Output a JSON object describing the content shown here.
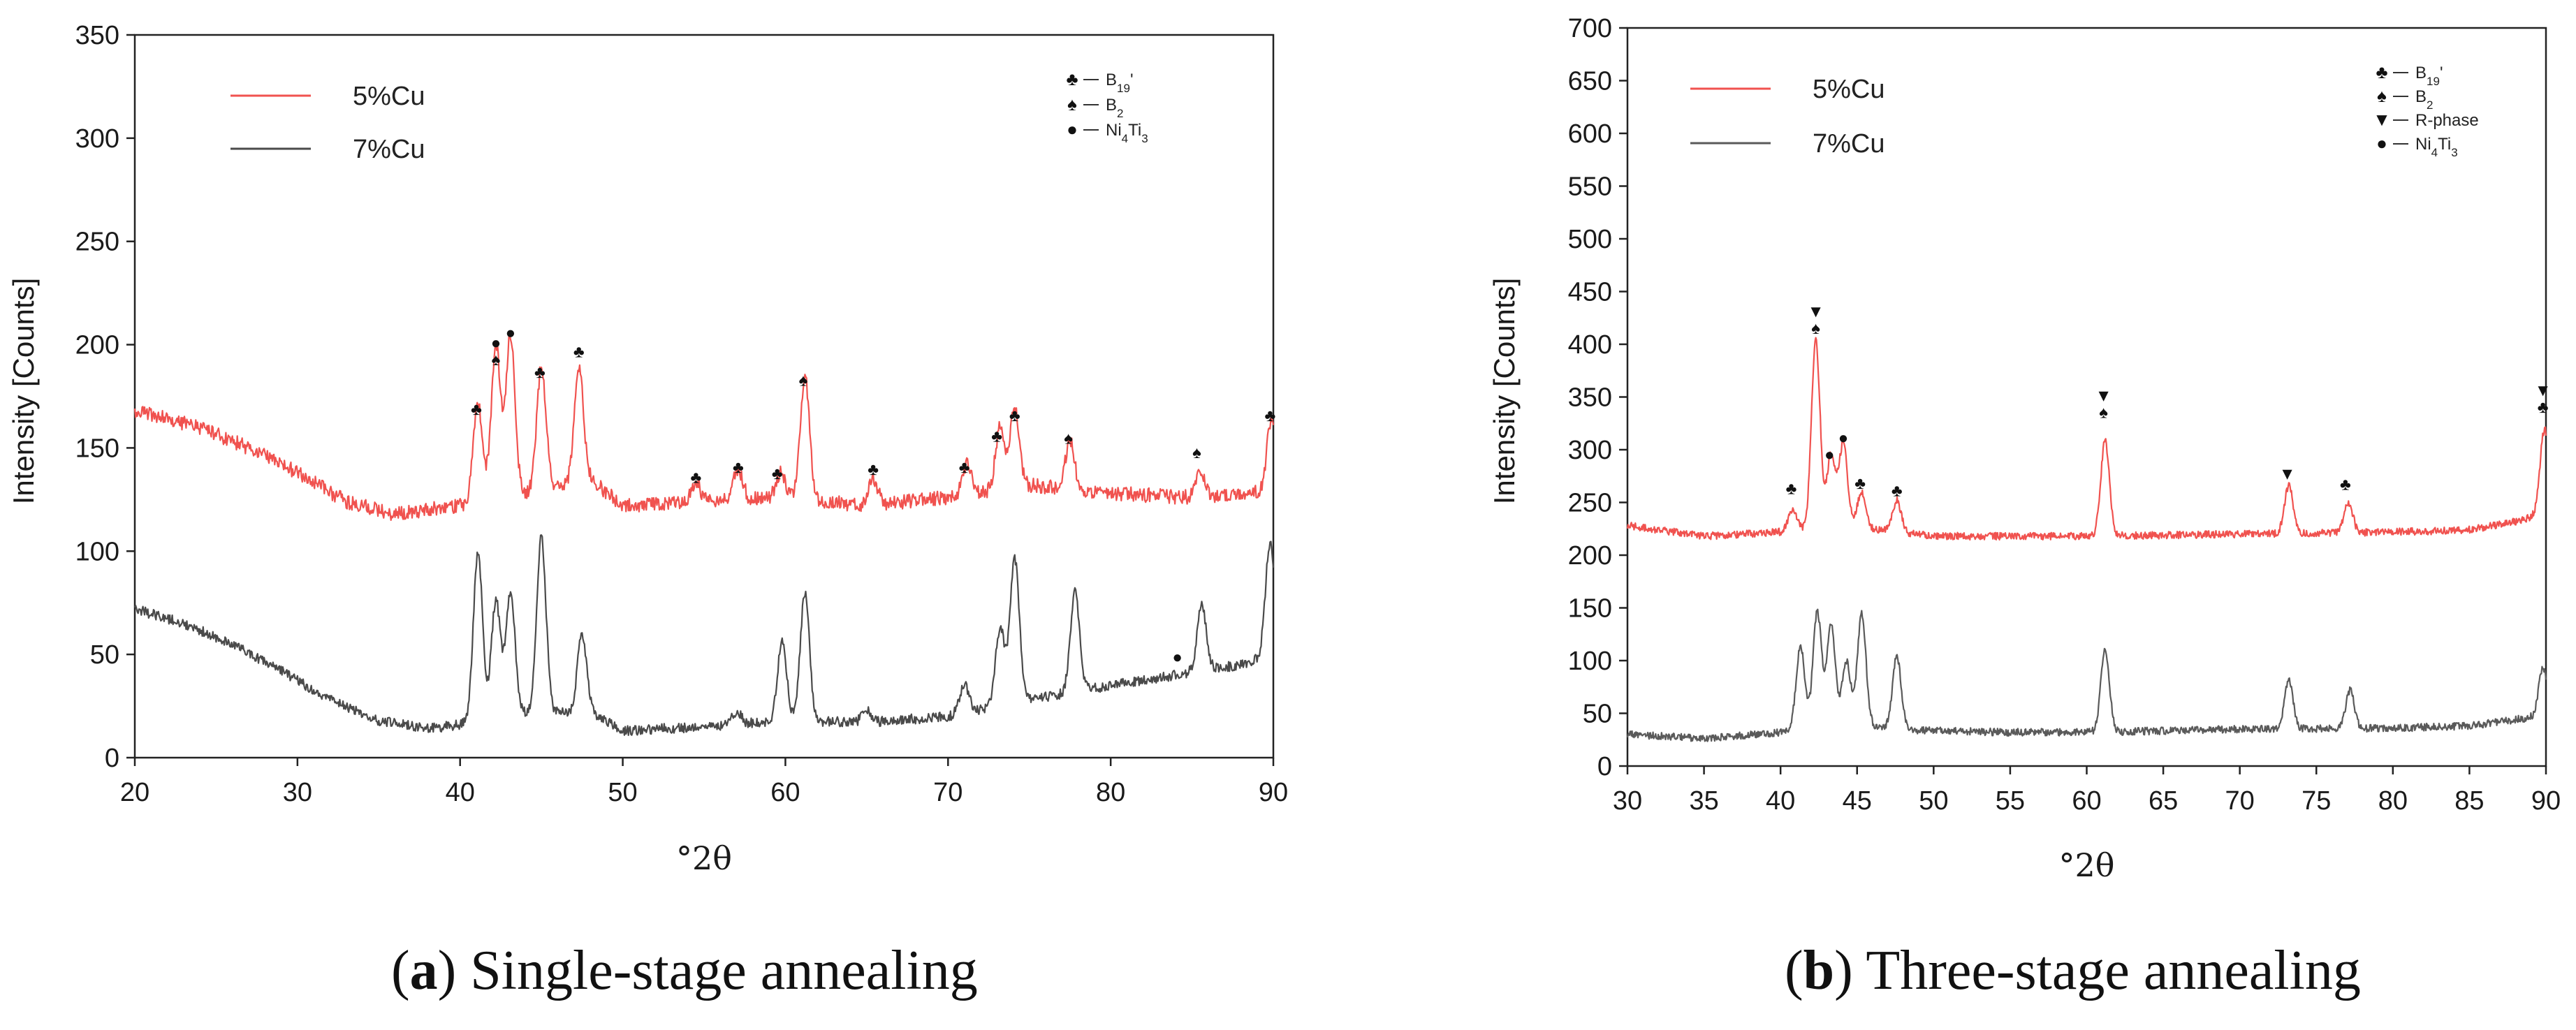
{
  "captions": [
    {
      "letter": "a",
      "text": "Single-stage annealing"
    },
    {
      "letter": "b",
      "text": "Three-stage annealing"
    }
  ],
  "chart_data": [
    {
      "type": "line",
      "title": "",
      "xlabel": "°2θ",
      "ylabel": "Intensity [Counts]",
      "xlim": [
        20,
        90
      ],
      "ylim": [
        0,
        350
      ],
      "xticks": [
        20,
        30,
        40,
        50,
        60,
        70,
        80,
        90
      ],
      "yticks": [
        0,
        50,
        100,
        150,
        200,
        250,
        300,
        350
      ],
      "grid": false,
      "legend_position": "top-left",
      "series": [
        {
          "name": "5%Cu",
          "color": "#f0524f",
          "baseline": 125,
          "profile": [
            [
              20,
              168
            ],
            [
              24,
              160
            ],
            [
              27,
              150
            ],
            [
              30,
              138
            ],
            [
              33,
              124
            ],
            [
              36,
              118
            ],
            [
              40,
              122
            ],
            [
              44,
              128
            ],
            [
              48,
              135
            ],
            [
              50,
              122
            ],
            [
              55,
              124
            ],
            [
              60,
              126
            ],
            [
              65,
              122
            ],
            [
              70,
              126
            ],
            [
              75,
              132
            ],
            [
              80,
              128
            ],
            [
              85,
              126
            ],
            [
              88,
              128
            ],
            [
              90,
              130
            ]
          ],
          "peaks": [
            [
              41.1,
              48
            ],
            [
              42.2,
              75
            ],
            [
              43.1,
              78
            ],
            [
              45.0,
              60
            ],
            [
              47.3,
              55
            ],
            [
              54.5,
              10
            ],
            [
              57.1,
              15
            ],
            [
              59.7,
              12
            ],
            [
              61.2,
              60
            ],
            [
              65.4,
              12
            ],
            [
              71.2,
              15
            ],
            [
              73.2,
              30
            ],
            [
              74.1,
              38
            ],
            [
              77.5,
              23
            ],
            [
              85.5,
              14
            ],
            [
              89.9,
              35
            ]
          ]
        },
        {
          "name": "7%Cu",
          "color": "#4a4a4a",
          "baseline": 18,
          "profile": [
            [
              20,
              72
            ],
            [
              23,
              65
            ],
            [
              26,
              55
            ],
            [
              29,
              42
            ],
            [
              32,
              28
            ],
            [
              35,
              18
            ],
            [
              38,
              14
            ],
            [
              40,
              16
            ],
            [
              44,
              22
            ],
            [
              48,
              22
            ],
            [
              50,
              13
            ],
            [
              55,
              15
            ],
            [
              60,
              18
            ],
            [
              65,
              17
            ],
            [
              70,
              20
            ],
            [
              75,
              28
            ],
            [
              80,
              35
            ],
            [
              84,
              40
            ],
            [
              88,
              45
            ],
            [
              90,
              50
            ]
          ],
          "peaks": [
            [
              41.1,
              82
            ],
            [
              42.2,
              57
            ],
            [
              43.1,
              60
            ],
            [
              45.0,
              85
            ],
            [
              47.5,
              38
            ],
            [
              57.0,
              6
            ],
            [
              59.8,
              38
            ],
            [
              61.2,
              62
            ],
            [
              65.0,
              6
            ],
            [
              71.0,
              14
            ],
            [
              73.2,
              38
            ],
            [
              74.1,
              70
            ],
            [
              77.8,
              48
            ],
            [
              85.6,
              32
            ],
            [
              89.8,
              55
            ]
          ]
        }
      ],
      "phase_legend": [
        {
          "symbol": "♣",
          "label": "B19'"
        },
        {
          "symbol": "♠",
          "label": "B2"
        },
        {
          "symbol": "●",
          "label": "Ni4Ti3"
        }
      ],
      "annotations": [
        {
          "x": 41.0,
          "y": 166,
          "symbols": "♣"
        },
        {
          "x": 42.2,
          "y": 190,
          "symbols": "●♠"
        },
        {
          "x": 43.1,
          "y": 203,
          "symbols": "●"
        },
        {
          "x": 44.9,
          "y": 184,
          "symbols": "♣"
        },
        {
          "x": 47.3,
          "y": 194,
          "symbols": "♣"
        },
        {
          "x": 54.5,
          "y": 133,
          "symbols": "♣"
        },
        {
          "x": 57.1,
          "y": 138,
          "symbols": "♣"
        },
        {
          "x": 59.5,
          "y": 135,
          "symbols": "♣"
        },
        {
          "x": 61.1,
          "y": 180,
          "symbols": "♠"
        },
        {
          "x": 65.4,
          "y": 137,
          "symbols": "♣"
        },
        {
          "x": 71.0,
          "y": 138,
          "symbols": "♣"
        },
        {
          "x": 73.0,
          "y": 153,
          "symbols": "♣"
        },
        {
          "x": 74.1,
          "y": 163,
          "symbols": "♣"
        },
        {
          "x": 77.4,
          "y": 152,
          "symbols": "♠"
        },
        {
          "x": 85.3,
          "y": 145,
          "symbols": "♠"
        },
        {
          "x": 89.8,
          "y": 163,
          "symbols": "♣"
        },
        {
          "x": 84.1,
          "y": 46,
          "symbols": "●"
        }
      ]
    },
    {
      "type": "line",
      "title": "",
      "xlabel": "°2θ",
      "ylabel": "Intensity [Counts]",
      "xlim": [
        30,
        90
      ],
      "ylim": [
        0,
        700
      ],
      "xticks": [
        30,
        35,
        40,
        45,
        50,
        55,
        60,
        65,
        70,
        75,
        80,
        85,
        90
      ],
      "yticks": [
        0,
        50,
        100,
        150,
        200,
        250,
        300,
        350,
        400,
        450,
        500,
        550,
        600,
        650,
        700
      ],
      "grid": false,
      "legend_position": "top-left",
      "series": [
        {
          "name": "5%Cu",
          "color": "#f0524f",
          "baseline": 220,
          "profile": [
            [
              30,
              228
            ],
            [
              35,
              218
            ],
            [
              40,
              222
            ],
            [
              45,
              226
            ],
            [
              50,
              218
            ],
            [
              60,
              218
            ],
            [
              70,
              220
            ],
            [
              80,
              222
            ],
            [
              85,
              224
            ],
            [
              88,
              232
            ],
            [
              90,
              240
            ]
          ],
          "peaks": [
            [
              40.8,
              20
            ],
            [
              42.3,
              180
            ],
            [
              43.3,
              70
            ],
            [
              44.1,
              80
            ],
            [
              45.3,
              35
            ],
            [
              47.6,
              30
            ],
            [
              61.2,
              90
            ],
            [
              73.2,
              45
            ],
            [
              77.1,
              28
            ],
            [
              89.9,
              80
            ]
          ]
        },
        {
          "name": "7%Cu",
          "color": "#5a5a5a",
          "baseline": 30,
          "profile": [
            [
              30,
              30
            ],
            [
              35,
              26
            ],
            [
              40,
              32
            ],
            [
              45,
              40
            ],
            [
              48,
              34
            ],
            [
              55,
              32
            ],
            [
              60,
              32
            ],
            [
              70,
              35
            ],
            [
              80,
              36
            ],
            [
              85,
              38
            ],
            [
              88,
              44
            ],
            [
              90,
              48
            ]
          ],
          "peaks": [
            [
              41.3,
              80
            ],
            [
              42.4,
              110
            ],
            [
              43.3,
              95
            ],
            [
              44.3,
              60
            ],
            [
              45.3,
              105
            ],
            [
              47.6,
              70
            ],
            [
              61.2,
              78
            ],
            [
              73.2,
              46
            ],
            [
              77.2,
              36
            ],
            [
              89.8,
              45
            ]
          ]
        }
      ],
      "phase_legend": [
        {
          "symbol": "♣",
          "label": "B19'"
        },
        {
          "symbol": "♠",
          "label": "B2"
        },
        {
          "symbol": "▼",
          "label": "R-phase"
        },
        {
          "symbol": "●",
          "label": "Ni4Ti3"
        }
      ],
      "annotations": [
        {
          "x": 40.7,
          "y": 258,
          "symbols": "♣"
        },
        {
          "x": 42.3,
          "y": 410,
          "symbols": "▼♠"
        },
        {
          "x": 43.2,
          "y": 290,
          "symbols": "●"
        },
        {
          "x": 44.1,
          "y": 306,
          "symbols": "●"
        },
        {
          "x": 45.2,
          "y": 263,
          "symbols": "♣"
        },
        {
          "x": 47.6,
          "y": 256,
          "symbols": "♣"
        },
        {
          "x": 61.1,
          "y": 330,
          "symbols": "▼♠"
        },
        {
          "x": 73.1,
          "y": 272,
          "symbols": "▼"
        },
        {
          "x": 76.9,
          "y": 262,
          "symbols": "♣"
        },
        {
          "x": 89.8,
          "y": 335,
          "symbols": "▼♣"
        }
      ]
    }
  ]
}
